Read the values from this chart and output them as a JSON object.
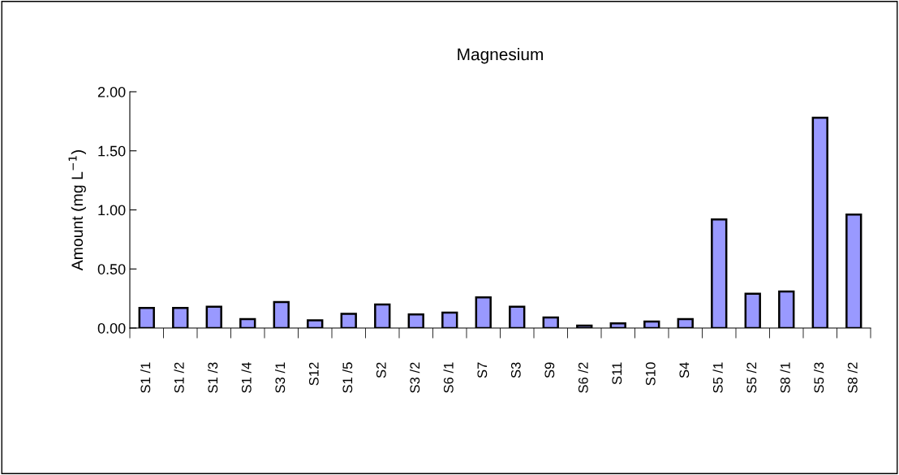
{
  "chart_data": {
    "type": "bar",
    "title": "Magnesium",
    "ylabel": "Amount (mg L$^{−1}$)",
    "categories": [
      "S1 /1",
      "S1 /2",
      "S1 /3",
      "S1 /4",
      "S3 /1",
      "S12",
      "S1 /5",
      "S2",
      "S3 /2",
      "S6 /1",
      "S7",
      "S3",
      "S9",
      "S6 /2",
      "S11",
      "S10",
      "S4",
      "S5 /1",
      "S5 /2",
      "S8 /1",
      "S5 /3",
      "S8 /2"
    ],
    "values": [
      0.17,
      0.17,
      0.18,
      0.075,
      0.22,
      0.065,
      0.12,
      0.2,
      0.115,
      0.13,
      0.26,
      0.18,
      0.09,
      0.02,
      0.04,
      0.055,
      0.075,
      0.92,
      0.29,
      0.31,
      1.78,
      0.96
    ],
    "color": "#9999ff",
    "ylim": [
      0,
      2
    ],
    "yticks": [
      {
        "value": 0,
        "label": "0.00"
      },
      {
        "value": 0.5,
        "label": "0.50"
      },
      {
        "value": 1,
        "label": "1.00"
      },
      {
        "value": 1.5,
        "label": "1.50"
      },
      {
        "value": 2,
        "label": "2.00"
      }
    ],
    "grid": false
  }
}
